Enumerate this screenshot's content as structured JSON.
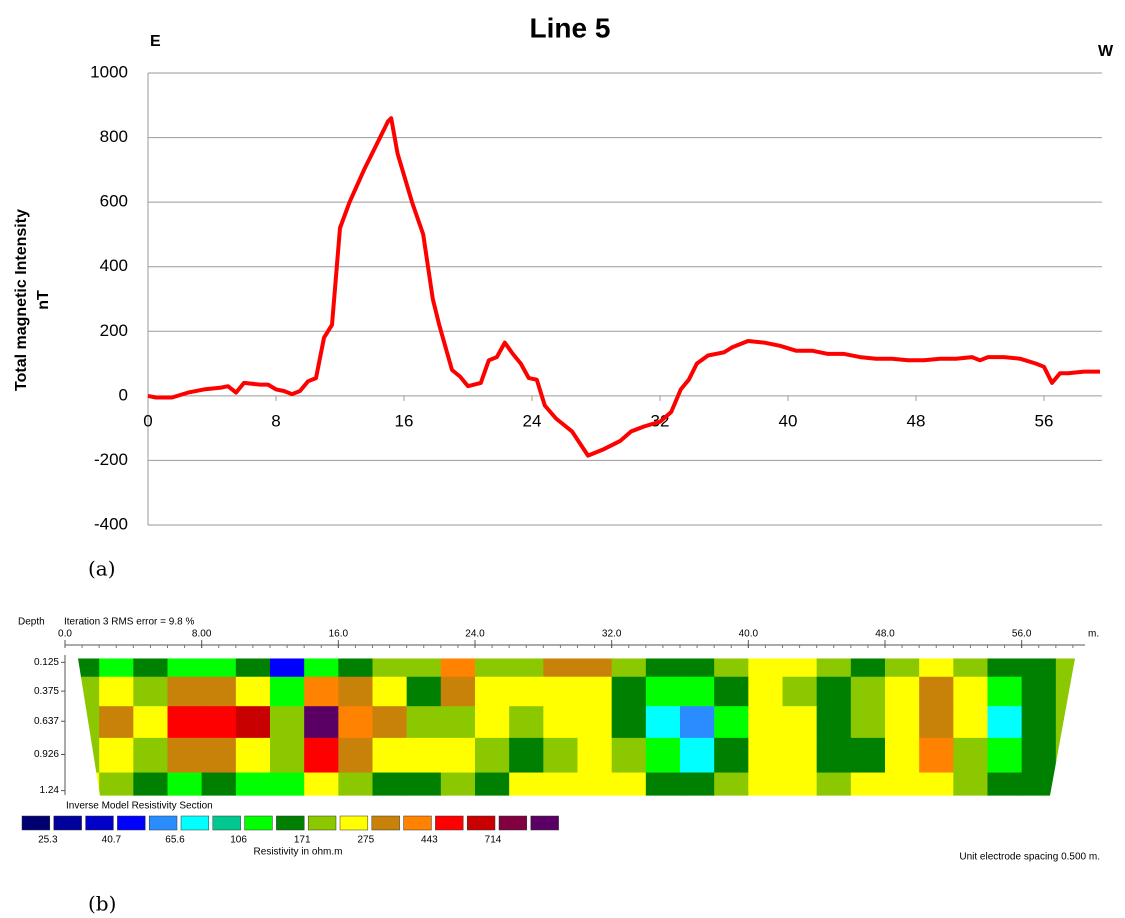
{
  "chart_data": [
    {
      "type": "line",
      "title": "Line 5",
      "annotations": [
        "E",
        "W"
      ],
      "y_label": [
        "Total magnetic Intensity",
        "nT"
      ],
      "xlim": [
        0,
        60
      ],
      "xticks": [
        0,
        8,
        16,
        24,
        32,
        40,
        48,
        56
      ],
      "ylim": [
        -400,
        1000
      ],
      "yticks": [
        -400,
        -200,
        0,
        200,
        400,
        600,
        800,
        1000
      ],
      "grid": true,
      "x": [
        0,
        0.5,
        1.5,
        2.5,
        3.5,
        4.5,
        5,
        5.5,
        6,
        7,
        7.5,
        8,
        8.5,
        9,
        9.5,
        10,
        10.5,
        11,
        11.5,
        12,
        12.6,
        13.5,
        14.5,
        15,
        15.2,
        15.6,
        16.5,
        17.2,
        17.8,
        18.2,
        19,
        19.5,
        20,
        20.8,
        21.3,
        21.8,
        22.3,
        22.8,
        23.3,
        23.8,
        24.3,
        24.8,
        25.5,
        26.5,
        27.5,
        28.5,
        29.5,
        30.2,
        31,
        32,
        32.7,
        33.3,
        33.8,
        34.3,
        35,
        36,
        36.5,
        37.5,
        38.5,
        39.5,
        40.5,
        41.5,
        42.5,
        43.5,
        44.5,
        45.5,
        46.5,
        47.5,
        48.5,
        49.5,
        50.5,
        51.5,
        52,
        52.5,
        53.5,
        54.5,
        55.5,
        56,
        56.5,
        57,
        57.5,
        58.5,
        59.5
      ],
      "series": [
        {
          "color": "#ff0000",
          "values": [
            0,
            -5,
            -5,
            10,
            20,
            25,
            30,
            10,
            40,
            35,
            35,
            20,
            15,
            5,
            15,
            45,
            55,
            180,
            220,
            520,
            600,
            700,
            800,
            850,
            860,
            750,
            600,
            500,
            300,
            220,
            80,
            60,
            30,
            40,
            110,
            120,
            165,
            130,
            100,
            55,
            50,
            -30,
            -70,
            -110,
            -185,
            -165,
            -140,
            -110,
            -95,
            -80,
            -50,
            20,
            50,
            100,
            125,
            135,
            150,
            170,
            165,
            155,
            140,
            140,
            130,
            130,
            120,
            115,
            115,
            110,
            110,
            115,
            115,
            120,
            110,
            120,
            120,
            115,
            100,
            90,
            40,
            70,
            70,
            75,
            75
          ]
        }
      ]
    },
    {
      "type": "heatmap",
      "title": "Inverse Model Resistivity Section",
      "subtitle": "Iteration 3 RMS error = 9.8 %",
      "y_label": "Depth",
      "x_unit": "m.",
      "xlim": [
        0,
        60
      ],
      "xticks": [
        {
          "value": 0,
          "label": "0.0"
        },
        {
          "value": 8,
          "label": "8.00"
        },
        {
          "value": 16,
          "label": "16.0"
        },
        {
          "value": 24,
          "label": "24.0"
        },
        {
          "value": 32,
          "label": "32.0"
        },
        {
          "value": 40,
          "label": "40.0"
        },
        {
          "value": 48,
          "label": "48.0"
        },
        {
          "value": 56,
          "label": "56.0"
        }
      ],
      "ylim": [
        0,
        1.3
      ],
      "yticks": [
        0.125,
        0.375,
        0.637,
        0.926,
        1.24
      ],
      "x": [
        1,
        3,
        5,
        7,
        9,
        11,
        13,
        15,
        17,
        19,
        21,
        23,
        25,
        27,
        29,
        31,
        33,
        35,
        37,
        39,
        41,
        43,
        45,
        47,
        49,
        51,
        53,
        55,
        57,
        59
      ],
      "values": [
        [
          150,
          120,
          150,
          120,
          120,
          150,
          46,
          120,
          150,
          190,
          190,
          400,
          190,
          190,
          310,
          310,
          190,
          150,
          150,
          190,
          240,
          240,
          190,
          150,
          190,
          240,
          190,
          150,
          150,
          190
        ],
        [
          190,
          240,
          190,
          310,
          310,
          240,
          120,
          400,
          310,
          240,
          150,
          310,
          240,
          240,
          240,
          240,
          150,
          120,
          120,
          150,
          240,
          190,
          150,
          190,
          240,
          310,
          240,
          120,
          150,
          190
        ],
        [
          190,
          310,
          240,
          500,
          500,
          630,
          190,
          1000,
          400,
          310,
          190,
          190,
          240,
          190,
          240,
          240,
          150,
          75,
          58,
          120,
          240,
          240,
          150,
          190,
          240,
          310,
          240,
          75,
          150,
          190
        ],
        [
          190,
          240,
          190,
          310,
          310,
          240,
          190,
          500,
          310,
          240,
          240,
          240,
          190,
          150,
          190,
          240,
          190,
          120,
          75,
          150,
          240,
          240,
          150,
          150,
          240,
          400,
          190,
          120,
          150,
          190
        ],
        [
          240,
          190,
          150,
          120,
          150,
          120,
          120,
          240,
          190,
          150,
          150,
          190,
          150,
          240,
          240,
          240,
          240,
          150,
          150,
          190,
          240,
          240,
          190,
          240,
          240,
          240,
          190,
          150,
          150,
          190
        ]
      ],
      "colorbar": {
        "colors": [
          "#000070",
          "#00009a",
          "#0000c8",
          "#0000ff",
          "#2a8cff",
          "#00ffff",
          "#00c890",
          "#00ff00",
          "#008000",
          "#8cc800",
          "#ffff00",
          "#c8820a",
          "#ff8200",
          "#ff0000",
          "#c80000",
          "#800040",
          "#5a0064"
        ],
        "levels": [
          25.3,
          40.7,
          65.6,
          106,
          171,
          275,
          443,
          714
        ],
        "label": "Resistivity in ohm.m"
      },
      "note": "Unit electrode spacing 0.500 m."
    }
  ],
  "panel_labels": [
    "(a)",
    "(b)"
  ]
}
